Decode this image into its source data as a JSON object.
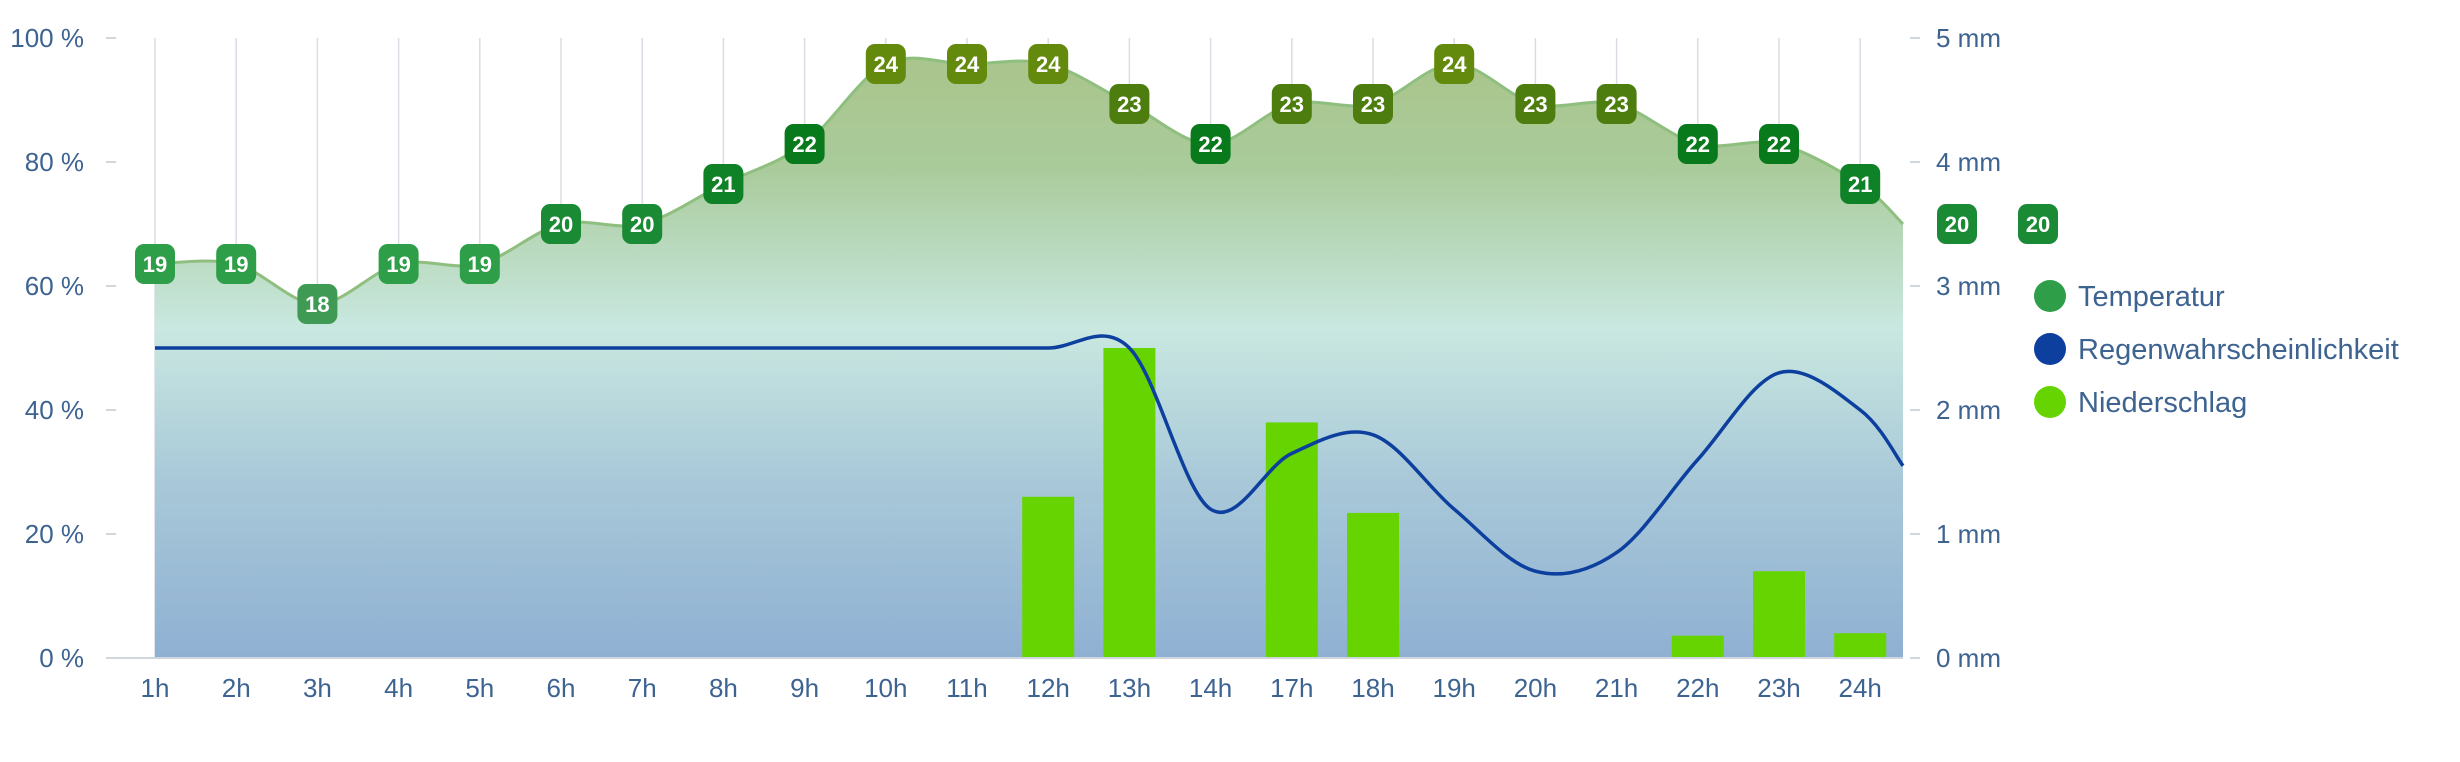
{
  "chart_data": {
    "type": "combo",
    "categories": [
      "1h",
      "2h",
      "3h",
      "4h",
      "5h",
      "6h",
      "7h",
      "8h",
      "9h",
      "10h",
      "11h",
      "12h",
      "13h",
      "14h",
      "17h",
      "18h",
      "19h",
      "20h",
      "21h",
      "22h",
      "23h",
      "24h"
    ],
    "left_axis": {
      "ticks": [
        "0 %",
        "20 %",
        "40 %",
        "60 %",
        "80 %",
        "100 %"
      ],
      "min": 0,
      "max": 100
    },
    "right_axis": {
      "ticks": [
        "0 mm",
        "1 mm",
        "2 mm",
        "3 mm",
        "4 mm",
        "5 mm"
      ],
      "min": 0,
      "max": 5
    },
    "grid": true,
    "legend_position": "right",
    "series": [
      {
        "name": "Temperatur",
        "kind": "area-labels",
        "color": "#2e9e48",
        "values": [
          19,
          19,
          18,
          19,
          19,
          20,
          20,
          21,
          22,
          24,
          24,
          24,
          23,
          22,
          23,
          23,
          24,
          23,
          23,
          22,
          22,
          21
        ],
        "trailing_labels": [
          20,
          20
        ]
      },
      {
        "name": "Regenwahrscheinlichkeit",
        "kind": "line",
        "color": "#0c3f9e",
        "unit": "%",
        "values": [
          50,
          50,
          50,
          50,
          50,
          50,
          50,
          50,
          50,
          50,
          50,
          50,
          50,
          24,
          33,
          36,
          24,
          14,
          17,
          32,
          46,
          40
        ],
        "end_value": 31
      },
      {
        "name": "Niederschlag",
        "kind": "bar",
        "color": "#66d400",
        "unit": "mm",
        "values": [
          0,
          0,
          0,
          0,
          0,
          0,
          0,
          0,
          0,
          0,
          0,
          1.3,
          2.5,
          0,
          1.9,
          1.17,
          0,
          0,
          0,
          0.18,
          0.7,
          0.2
        ]
      }
    ],
    "temperature_label_colors": {
      "18": "#3f9b54",
      "19": "#2e9e48",
      "20": "#1a8a35",
      "21": "#0f8127",
      "22": "#087a1b",
      "23": "#4d7d0e",
      "24": "#638a0c"
    }
  }
}
